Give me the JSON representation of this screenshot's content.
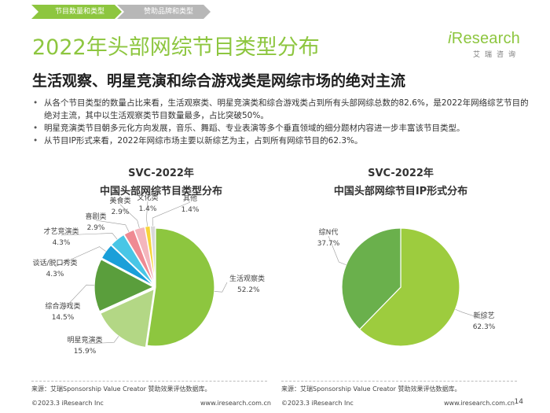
{
  "tabs": [
    "节目数量和类型",
    "赞助品牌和类型"
  ],
  "logo": {
    "i": "i",
    "word": "Research",
    "sub": "艾瑞咨询"
  },
  "title": "2022年头部网综节目类型分布",
  "subtitle": "生活观察、明星竞演和综合游戏类是网综市场的绝对主流",
  "bullets": [
    "从各个节目类型的数量占比来看，生活观察类、明星竞演类和综合游戏类占到所有头部网综总数的82.6%，是2022年网络综艺节目的绝对主流，其中以生活观察类节目数量最多，占比突破50%。",
    "明星竞演类节目朝多元化方向发展，音乐、舞蹈、专业表演等多个垂直领域的细分题材内容进一步丰富该节目类型。",
    "从节目IP形式来看，2022年网综市场主要以新综艺为主，占到所有网综节目的62.3%。"
  ],
  "colors": {
    "accent": "#8dc63f",
    "tab_inactive": "#b7b7b7"
  },
  "chart_data": [
    {
      "type": "pie",
      "title": "SVC-2022年",
      "subtitle": "中国头部网综节目类型分布",
      "slices": [
        {
          "name": "生活观察类",
          "value": 52.2,
          "color": "#8dc63f"
        },
        {
          "name": "明星竞演类",
          "value": 15.9,
          "color": "#b3d785"
        },
        {
          "name": "综合游戏类",
          "value": 14.5,
          "color": "#5a9e3c"
        },
        {
          "name": "谈话/脱口秀类",
          "value": 4.3,
          "color": "#1a9fd9"
        },
        {
          "name": "才艺竞演类",
          "value": 4.3,
          "color": "#49c6e6"
        },
        {
          "name": "喜剧类",
          "value": 2.9,
          "color": "#ef8a93"
        },
        {
          "name": "美食类",
          "value": 2.9,
          "color": "#f4b6bd"
        },
        {
          "name": "文化类",
          "value": 1.4,
          "color": "#f7d43a"
        },
        {
          "name": "其他",
          "value": 1.4,
          "color": "#d9d9d9"
        }
      ]
    },
    {
      "type": "pie",
      "title": "SVC-2022年",
      "subtitle": "中国头部网综节目IP形式分布",
      "slices": [
        {
          "name": "新综艺",
          "value": 62.3,
          "color": "#9dcc3e"
        },
        {
          "name": "综N代",
          "value": 37.7,
          "color": "#6ab04c"
        }
      ]
    }
  ],
  "footer": {
    "source": "来源：艾瑞Sponsorship Value Creator 赞助效果评估数据库。",
    "copyright": "©2023.3 iResearch Inc",
    "website": "www.iresearch.com.cn",
    "page": "14"
  }
}
